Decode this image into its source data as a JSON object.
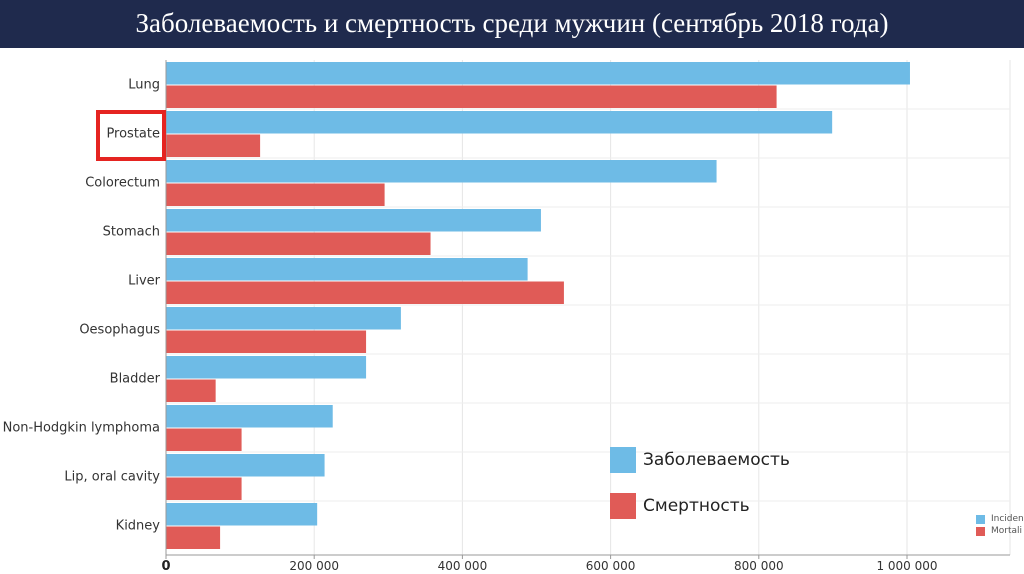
{
  "title": "Заболеваемость и смертность среди мужчин (сентябрь 2018 года)",
  "legend": {
    "incidence_label": "Заболеваемость",
    "mortality_label": "Смертность",
    "small_incidence_label": "Inciden",
    "small_mortality_label": "Mortali"
  },
  "colors": {
    "incidence": "#6ebbe6",
    "mortality": "#e05b57",
    "title_bar": "#1f2a4d",
    "highlight": "#e52421"
  },
  "chart_data": {
    "type": "bar",
    "orientation": "horizontal",
    "title": "Заболеваемость и смертность среди мужчин (сентябрь 2018 года)",
    "categories": [
      "Lung",
      "Prostate",
      "Colorectum",
      "Stomach",
      "Liver",
      "Oesophagus",
      "Bladder",
      "Non-Hodgkin lymphoma",
      "Lip, oral cavity",
      "Kidney"
    ],
    "series": [
      {
        "name": "Заболеваемость",
        "values": [
          1004000,
          899000,
          743000,
          506000,
          488000,
          317000,
          270000,
          225000,
          214000,
          204000
        ]
      },
      {
        "name": "Смертность",
        "values": [
          824000,
          127000,
          295000,
          357000,
          537000,
          270000,
          67000,
          102000,
          102000,
          73000
        ]
      }
    ],
    "xlim": [
      0,
      1100000
    ],
    "xticks": [
      0,
      200000,
      400000,
      600000,
      800000,
      1000000
    ],
    "xtick_labels": [
      "0",
      "200 000",
      "400 000",
      "600 000",
      "800 000",
      "1 000 000"
    ],
    "highlighted_category": "Prostate",
    "grid": true,
    "legend_position": "bottom-right"
  }
}
